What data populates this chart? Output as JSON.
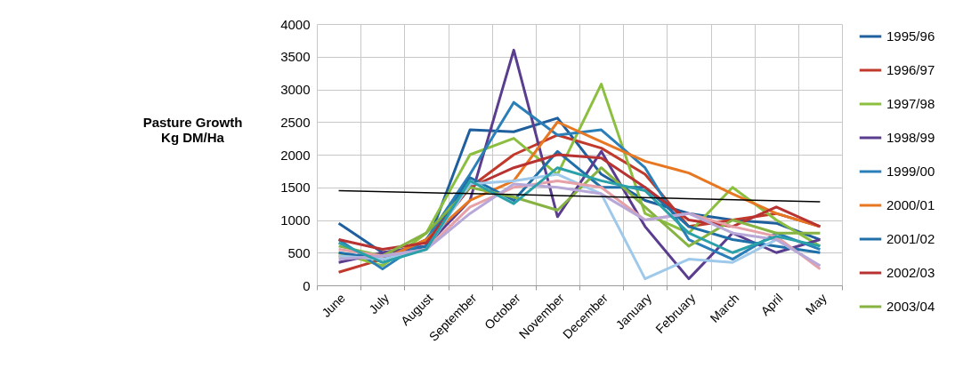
{
  "chart_data": {
    "type": "line",
    "ylabel": "Pasture Growth\nKg DM/Ha",
    "categories": [
      "June",
      "July",
      "August",
      "September",
      "October",
      "November",
      "December",
      "January",
      "February",
      "March",
      "April",
      "May"
    ],
    "ylim": [
      0,
      4000
    ],
    "yticks": [
      0,
      500,
      1000,
      1500,
      2000,
      2500,
      3000,
      3500,
      4000
    ],
    "grid": true,
    "legend": "right",
    "series": [
      {
        "name": "1995/96",
        "color": "#1f5f9e",
        "values": [
          950,
          500,
          600,
          2380,
          2350,
          2560,
          1700,
          1300,
          1100,
          1000,
          950,
          700
        ]
      },
      {
        "name": "1996/97",
        "color": "#c0392b",
        "values": [
          200,
          400,
          700,
          1500,
          2000,
          2300,
          2100,
          1700,
          900,
          1000,
          1100,
          900
        ]
      },
      {
        "name": "1997/98",
        "color": "#8cbf3f",
        "values": [
          500,
          300,
          800,
          2000,
          2250,
          1700,
          3080,
          1100,
          800,
          1500,
          1000,
          600
        ]
      },
      {
        "name": "1998/99",
        "color": "#5b3d8f",
        "values": [
          350,
          500,
          600,
          1300,
          3600,
          1050,
          2050,
          900,
          100,
          800,
          500,
          700
        ]
      },
      {
        "name": "1999/00",
        "color": "#2a7fb8",
        "values": [
          700,
          250,
          700,
          1700,
          2800,
          2300,
          2380,
          1800,
          700,
          400,
          800,
          550
        ]
      },
      {
        "name": "2000/01",
        "color": "#e87722",
        "values": [
          450,
          400,
          700,
          1300,
          1600,
          2500,
          2200,
          1900,
          1720,
          1400,
          1100,
          900
        ]
      },
      {
        "name": "2001/02",
        "color": "#1f6fa8",
        "values": [
          500,
          400,
          600,
          1650,
          1300,
          2050,
          1500,
          1500,
          900,
          700,
          600,
          500
        ]
      },
      {
        "name": "2002/03",
        "color": "#b83232",
        "values": [
          700,
          550,
          650,
          1500,
          1800,
          2000,
          1950,
          1500,
          1000,
          900,
          1200,
          900
        ]
      },
      {
        "name": "2003/04",
        "color": "#86b342",
        "values": [
          600,
          450,
          800,
          1500,
          1350,
          1150,
          1800,
          1200,
          600,
          1000,
          800,
          800
        ]
      },
      {
        "color": "#9ec9eb",
        "values": [
          450,
          400,
          550,
          1550,
          1600,
          1700,
          1400,
          100,
          400,
          350,
          700,
          300
        ]
      },
      {
        "color": "#e6a0a8",
        "values": [
          550,
          450,
          550,
          1200,
          1500,
          1600,
          1500,
          1000,
          1100,
          900,
          750,
          250
        ]
      },
      {
        "color": "#b8a8d8",
        "values": [
          400,
          450,
          550,
          1100,
          1550,
          1500,
          1400,
          1000,
          1100,
          800,
          700,
          300
        ]
      },
      {
        "color": "#2aa0a8",
        "values": [
          650,
          350,
          550,
          1600,
          1250,
          1800,
          1600,
          1450,
          800,
          500,
          750,
          600
        ]
      },
      {
        "color": "#000000",
        "type": "line",
        "x": [
          "June",
          "May"
        ],
        "values": [
          1450,
          1280
        ]
      }
    ]
  }
}
